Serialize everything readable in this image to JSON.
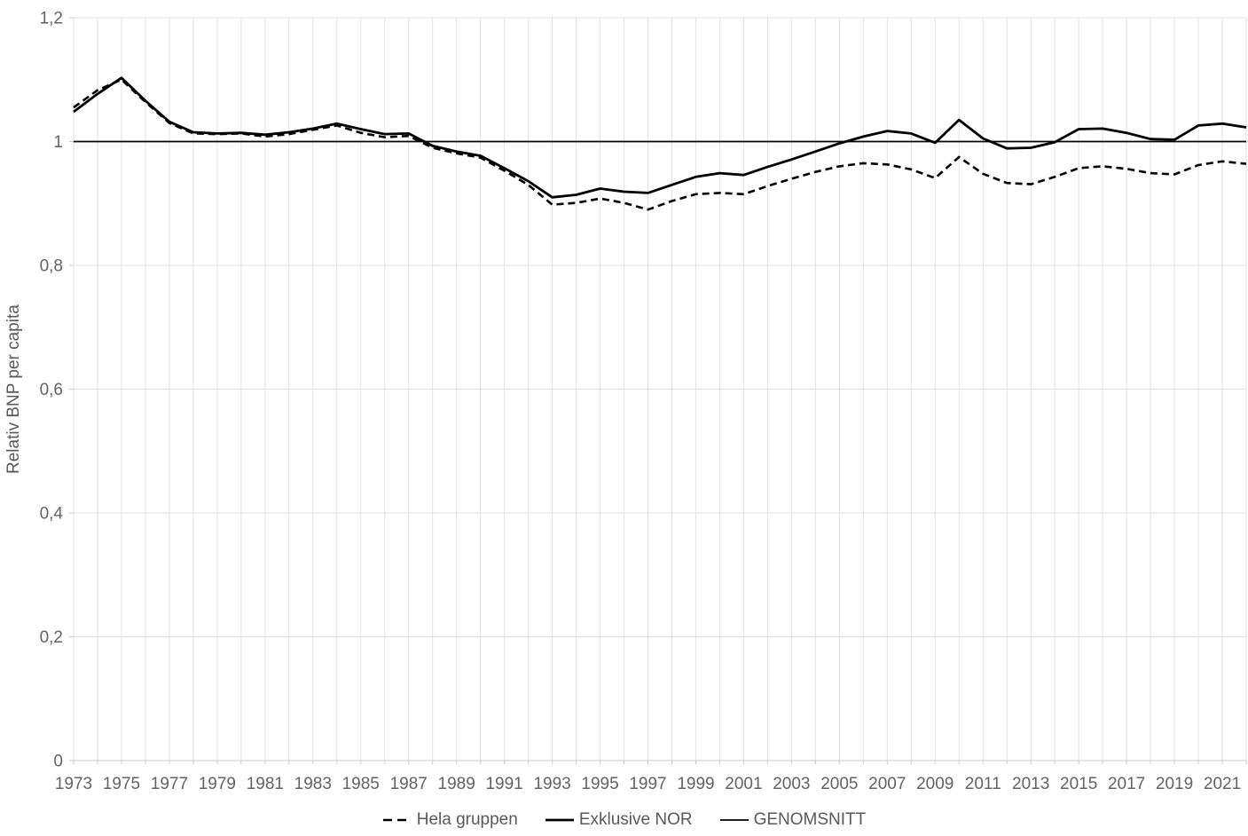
{
  "chart_data": {
    "type": "line",
    "title": "",
    "xlabel": "",
    "ylabel": "Relativ BNP per capita",
    "ylim": [
      0,
      1.2
    ],
    "y_ticks": [
      0,
      0.2,
      0.4,
      0.6,
      0.8,
      1,
      1.2
    ],
    "y_tick_labels": [
      "0",
      "0,2",
      "0,4",
      "0,6",
      "0,8",
      "1",
      "1,2"
    ],
    "grid": true,
    "legend_position": "bottom",
    "x": [
      1973,
      1974,
      1975,
      1976,
      1977,
      1978,
      1979,
      1980,
      1981,
      1982,
      1983,
      1984,
      1985,
      1986,
      1987,
      1988,
      1989,
      1990,
      1991,
      1992,
      1993,
      1994,
      1995,
      1996,
      1997,
      1998,
      1999,
      2000,
      2001,
      2002,
      2003,
      2004,
      2005,
      2006,
      2007,
      2008,
      2009,
      2010,
      2011,
      2012,
      2013,
      2014,
      2015,
      2016,
      2017,
      2018,
      2019,
      2020,
      2021,
      2022
    ],
    "x_tick_labels": [
      "1973",
      "1975",
      "1977",
      "1979",
      "1981",
      "1983",
      "1985",
      "1987",
      "1989",
      "1991",
      "1993",
      "1995",
      "1997",
      "1999",
      "2001",
      "2003",
      "2005",
      "2007",
      "2009",
      "2011",
      "2013",
      "2015",
      "2017",
      "2019",
      "2021"
    ],
    "series": [
      {
        "name": "Hela gruppen",
        "style": "dashed",
        "color": "#000000",
        "width": 2.6,
        "values": [
          1.055,
          1.083,
          1.1,
          1.064,
          1.03,
          1.013,
          1.012,
          1.013,
          1.008,
          1.012,
          1.019,
          1.026,
          1.014,
          1.007,
          1.009,
          0.99,
          0.981,
          0.974,
          0.953,
          0.93,
          0.898,
          0.901,
          0.908,
          0.901,
          0.89,
          0.904,
          0.915,
          0.917,
          0.915,
          0.928,
          0.94,
          0.951,
          0.96,
          0.965,
          0.963,
          0.955,
          0.941,
          0.975,
          0.948,
          0.933,
          0.931,
          0.943,
          0.957,
          0.96,
          0.956,
          0.949,
          0.947,
          0.962,
          0.968,
          0.964
        ]
      },
      {
        "name": "Exklusive NOR",
        "style": "solid",
        "color": "#000000",
        "width": 2.8,
        "values": [
          1.048,
          1.077,
          1.103,
          1.066,
          1.032,
          1.015,
          1.013,
          1.014,
          1.011,
          1.015,
          1.021,
          1.029,
          1.02,
          1.012,
          1.013,
          0.993,
          0.984,
          0.977,
          0.957,
          0.936,
          0.91,
          0.914,
          0.924,
          0.919,
          0.917,
          0.93,
          0.943,
          0.949,
          0.946,
          0.959,
          0.971,
          0.984,
          0.997,
          1.008,
          1.017,
          1.013,
          0.998,
          1.035,
          1.005,
          0.989,
          0.99,
          0.999,
          1.02,
          1.021,
          1.014,
          1.004,
          1.003,
          1.026,
          1.029,
          1.023
        ]
      },
      {
        "name": "GENOMSNITT",
        "style": "solid-thin",
        "color": "#000000",
        "width": 1.7,
        "values": [
          1,
          1,
          1,
          1,
          1,
          1,
          1,
          1,
          1,
          1,
          1,
          1,
          1,
          1,
          1,
          1,
          1,
          1,
          1,
          1,
          1,
          1,
          1,
          1,
          1,
          1,
          1,
          1,
          1,
          1,
          1,
          1,
          1,
          1,
          1,
          1,
          1,
          1,
          1,
          1,
          1,
          1,
          1,
          1,
          1,
          1,
          1,
          1,
          1,
          1
        ]
      }
    ],
    "colors": {
      "gridline": "#e2e2e2",
      "axis_line": "#c9c9c9",
      "tick_label": "#636363",
      "legend_text": "#595959"
    }
  }
}
